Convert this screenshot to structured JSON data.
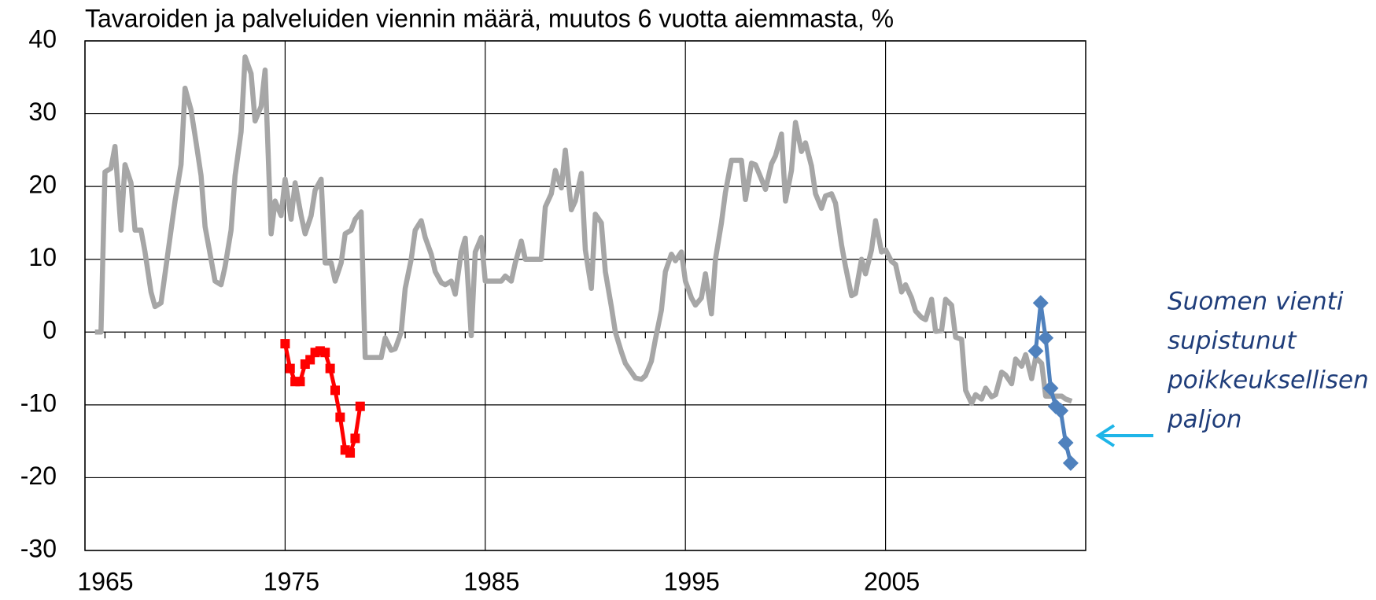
{
  "chart_data": {
    "type": "line",
    "title": "Tavaroiden ja palveluiden viennin määrä, muutos 6 vuotta aiemmasta, %",
    "xlim": [
      1965,
      2015
    ],
    "xticks": [
      1965,
      1975,
      1985,
      1995,
      2005
    ],
    "xminorticks": [
      1966,
      1967,
      1968,
      1969,
      1970,
      1971,
      1972,
      1973,
      1974,
      1976,
      1977,
      1978,
      1979,
      1980,
      1981,
      1982,
      1983,
      1984,
      1986,
      1987,
      1988,
      1989,
      1990,
      1991,
      1992,
      1993,
      1994,
      1996,
      1997,
      1998,
      1999,
      2000,
      2001,
      2002,
      2003,
      2004,
      2006,
      2007,
      2008,
      2009,
      2010,
      2011,
      2012,
      2013,
      2014
    ],
    "ylim": [
      -30,
      40
    ],
    "yticks": [
      -30,
      -20,
      -10,
      0,
      10,
      20,
      30,
      40
    ],
    "grid": true,
    "annotation": [
      "Suomen vienti",
      "supistunut",
      "poikkeuksellisen",
      "paljon"
    ],
    "annotation_color": "#1f3d7a",
    "arrow_color": "#1fb5e8",
    "series": [
      {
        "color": "#a6a6a6",
        "marker": "none",
        "x": [
          1965.5,
          1965.8,
          1966.0,
          1966.3,
          1966.5,
          1966.8,
          1967.0,
          1967.3,
          1967.5,
          1967.8,
          1968.0,
          1968.3,
          1968.5,
          1968.8,
          1969.0,
          1969.3,
          1969.5,
          1969.8,
          1970.0,
          1970.3,
          1970.5,
          1970.8,
          1971.0,
          1971.3,
          1971.5,
          1971.8,
          1972.0,
          1972.3,
          1972.5,
          1972.8,
          1973.0,
          1973.3,
          1973.5,
          1973.8,
          1974.0,
          1974.3,
          1974.5,
          1974.8,
          1975.0,
          1975.3,
          1975.5,
          1975.8,
          1976.0,
          1976.3,
          1976.5,
          1976.8,
          1977.0,
          1977.3,
          1977.5,
          1977.8,
          1978.0,
          1978.3,
          1978.5,
          1978.8,
          1979.0,
          1979.3,
          1979.5,
          1979.8,
          1980.0,
          1980.3,
          1980.5,
          1980.8,
          1981.0,
          1981.3,
          1981.5,
          1981.8,
          1982.0,
          1982.3,
          1982.5,
          1982.8,
          1983.0,
          1983.3,
          1983.5,
          1983.8,
          1984.0,
          1984.3,
          1984.5,
          1984.8,
          1985.0,
          1985.3,
          1985.5,
          1985.8,
          1986.0,
          1986.3,
          1986.5,
          1986.8,
          1987.0,
          1987.3,
          1987.5,
          1987.8,
          1988.0,
          1988.3,
          1988.5,
          1988.8,
          1989.0,
          1989.3,
          1989.5,
          1989.8,
          1990.0,
          1990.3,
          1990.5,
          1990.8,
          1991.0,
          1991.3,
          1991.5,
          1991.8,
          1992.0,
          1992.3,
          1992.5,
          1992.8,
          1993.0,
          1993.3,
          1993.5,
          1993.8,
          1994.0,
          1994.3,
          1994.5,
          1994.8,
          1995.0,
          1995.3,
          1995.5,
          1995.8,
          1996.0,
          1996.3,
          1996.5,
          1996.8,
          1997.0,
          1997.3,
          1997.5,
          1997.8,
          1998.0,
          1998.3,
          1998.5,
          1998.8,
          1999.0,
          1999.3,
          1999.5,
          1999.8,
          2000.0,
          2000.3,
          2000.5,
          2000.8,
          2001.0,
          2001.3,
          2001.5,
          2001.8,
          2002.0,
          2002.3,
          2002.5,
          2002.8,
          2003.0,
          2003.3,
          2003.5,
          2003.8,
          2004.0,
          2004.3,
          2004.5,
          2004.8,
          2005.0,
          2005.3,
          2005.5,
          2005.8,
          2006.0,
          2006.3,
          2006.5,
          2006.8,
          2007.0,
          2007.3,
          2007.5,
          2007.8,
          2008.0,
          2008.3,
          2008.5,
          2008.8,
          2009.0,
          2009.3,
          2009.5,
          2009.8,
          2010.0,
          2010.3,
          2010.5,
          2010.8,
          2011.0,
          2011.3,
          2011.5,
          2011.8,
          2012.0,
          2012.3,
          2012.5,
          2012.8,
          2013.0,
          2013.3,
          2013.5,
          2013.8,
          2014.0,
          2014.3
        ],
        "values": [
          0,
          0,
          22,
          22.5,
          25.5,
          14,
          23,
          20.5,
          14,
          14,
          11,
          5.5,
          3.5,
          4,
          8,
          14,
          18,
          23,
          33.5,
          30.5,
          27,
          21.5,
          14.5,
          10,
          7,
          6.5,
          9,
          14,
          21.5,
          27.5,
          37.8,
          35.5,
          29,
          31,
          36,
          13.5,
          18,
          16,
          21,
          15.5,
          20.5,
          16,
          13.5,
          16,
          19.5,
          21,
          9.5,
          9.5,
          7,
          9.5,
          13.5,
          14,
          15.5,
          16.5,
          -3.5,
          -3.5,
          -3.5,
          -3.5,
          -0.8,
          -2.5,
          -2.3,
          0,
          6,
          10,
          14,
          15.3,
          13,
          10.7,
          8.3,
          6.8,
          6.5,
          7,
          5.2,
          11,
          12.9,
          -0.5,
          11,
          13,
          7,
          7,
          7,
          7,
          7.7,
          7,
          9.5,
          12.5,
          10,
          10,
          10,
          10,
          17.2,
          19,
          22.2,
          19.8,
          25,
          16.8,
          18,
          21.8,
          11.3,
          6,
          16.2,
          15,
          8.3,
          3.5,
          0,
          -2.7,
          -4.3,
          -5.5,
          -6.3,
          -6.5,
          -6,
          -4,
          -1,
          3,
          8.3,
          10.7,
          9.8,
          11,
          7,
          4.7,
          3.7,
          4.7,
          8,
          2.5,
          10,
          15,
          19.2,
          23.6,
          23.6,
          23.6,
          18.2,
          23.2,
          23,
          21,
          19.6,
          23.1,
          24.2,
          27.2,
          18,
          22.2,
          28.8,
          24.8,
          26,
          22.8,
          19,
          17,
          18.7,
          19,
          17.7,
          12,
          9,
          5,
          5.3,
          10,
          8,
          11.3,
          15.3,
          11,
          11.3,
          9.7,
          9.3,
          5.5,
          6.5,
          4.7,
          2.9,
          2,
          1.7,
          4.5,
          0.1,
          0.2,
          4.5,
          3.7,
          -0.7,
          -1,
          -8,
          -9.8,
          -8.6,
          -9.2,
          -7.7,
          -8.9,
          -8.6,
          -5.5,
          -5.9,
          -7.1,
          -3.7,
          -4.7,
          -3.1,
          -6.4,
          -3.5,
          -4.3,
          -8.8,
          -8.8,
          -8.8,
          -8.8,
          -9.2,
          -9.5
        ]
      },
      {
        "color": "#ff0000",
        "marker": "square",
        "x": [
          1975.0,
          1975.25,
          1975.5,
          1975.75,
          1976.0,
          1976.25,
          1976.5,
          1976.75,
          1977.0,
          1977.25,
          1977.5,
          1977.75,
          1978.0,
          1978.25,
          1978.5,
          1978.75
        ],
        "values": [
          -1.6,
          -5,
          -6.8,
          -6.8,
          -4.4,
          -3.8,
          -2.8,
          -2.6,
          -2.8,
          -5,
          -8,
          -11.7,
          -16.2,
          -16.6,
          -14.6,
          -10.2
        ]
      },
      {
        "color": "#4f81bd",
        "marker": "diamond",
        "x": [
          2012.5,
          2012.75,
          2013.0,
          2013.25,
          2013.5,
          2013.75,
          2014.0,
          2014.25
        ],
        "values": [
          -2.6,
          4,
          -0.8,
          -7.7,
          -10.2,
          -10.8,
          -15.2,
          -18
        ]
      }
    ]
  }
}
